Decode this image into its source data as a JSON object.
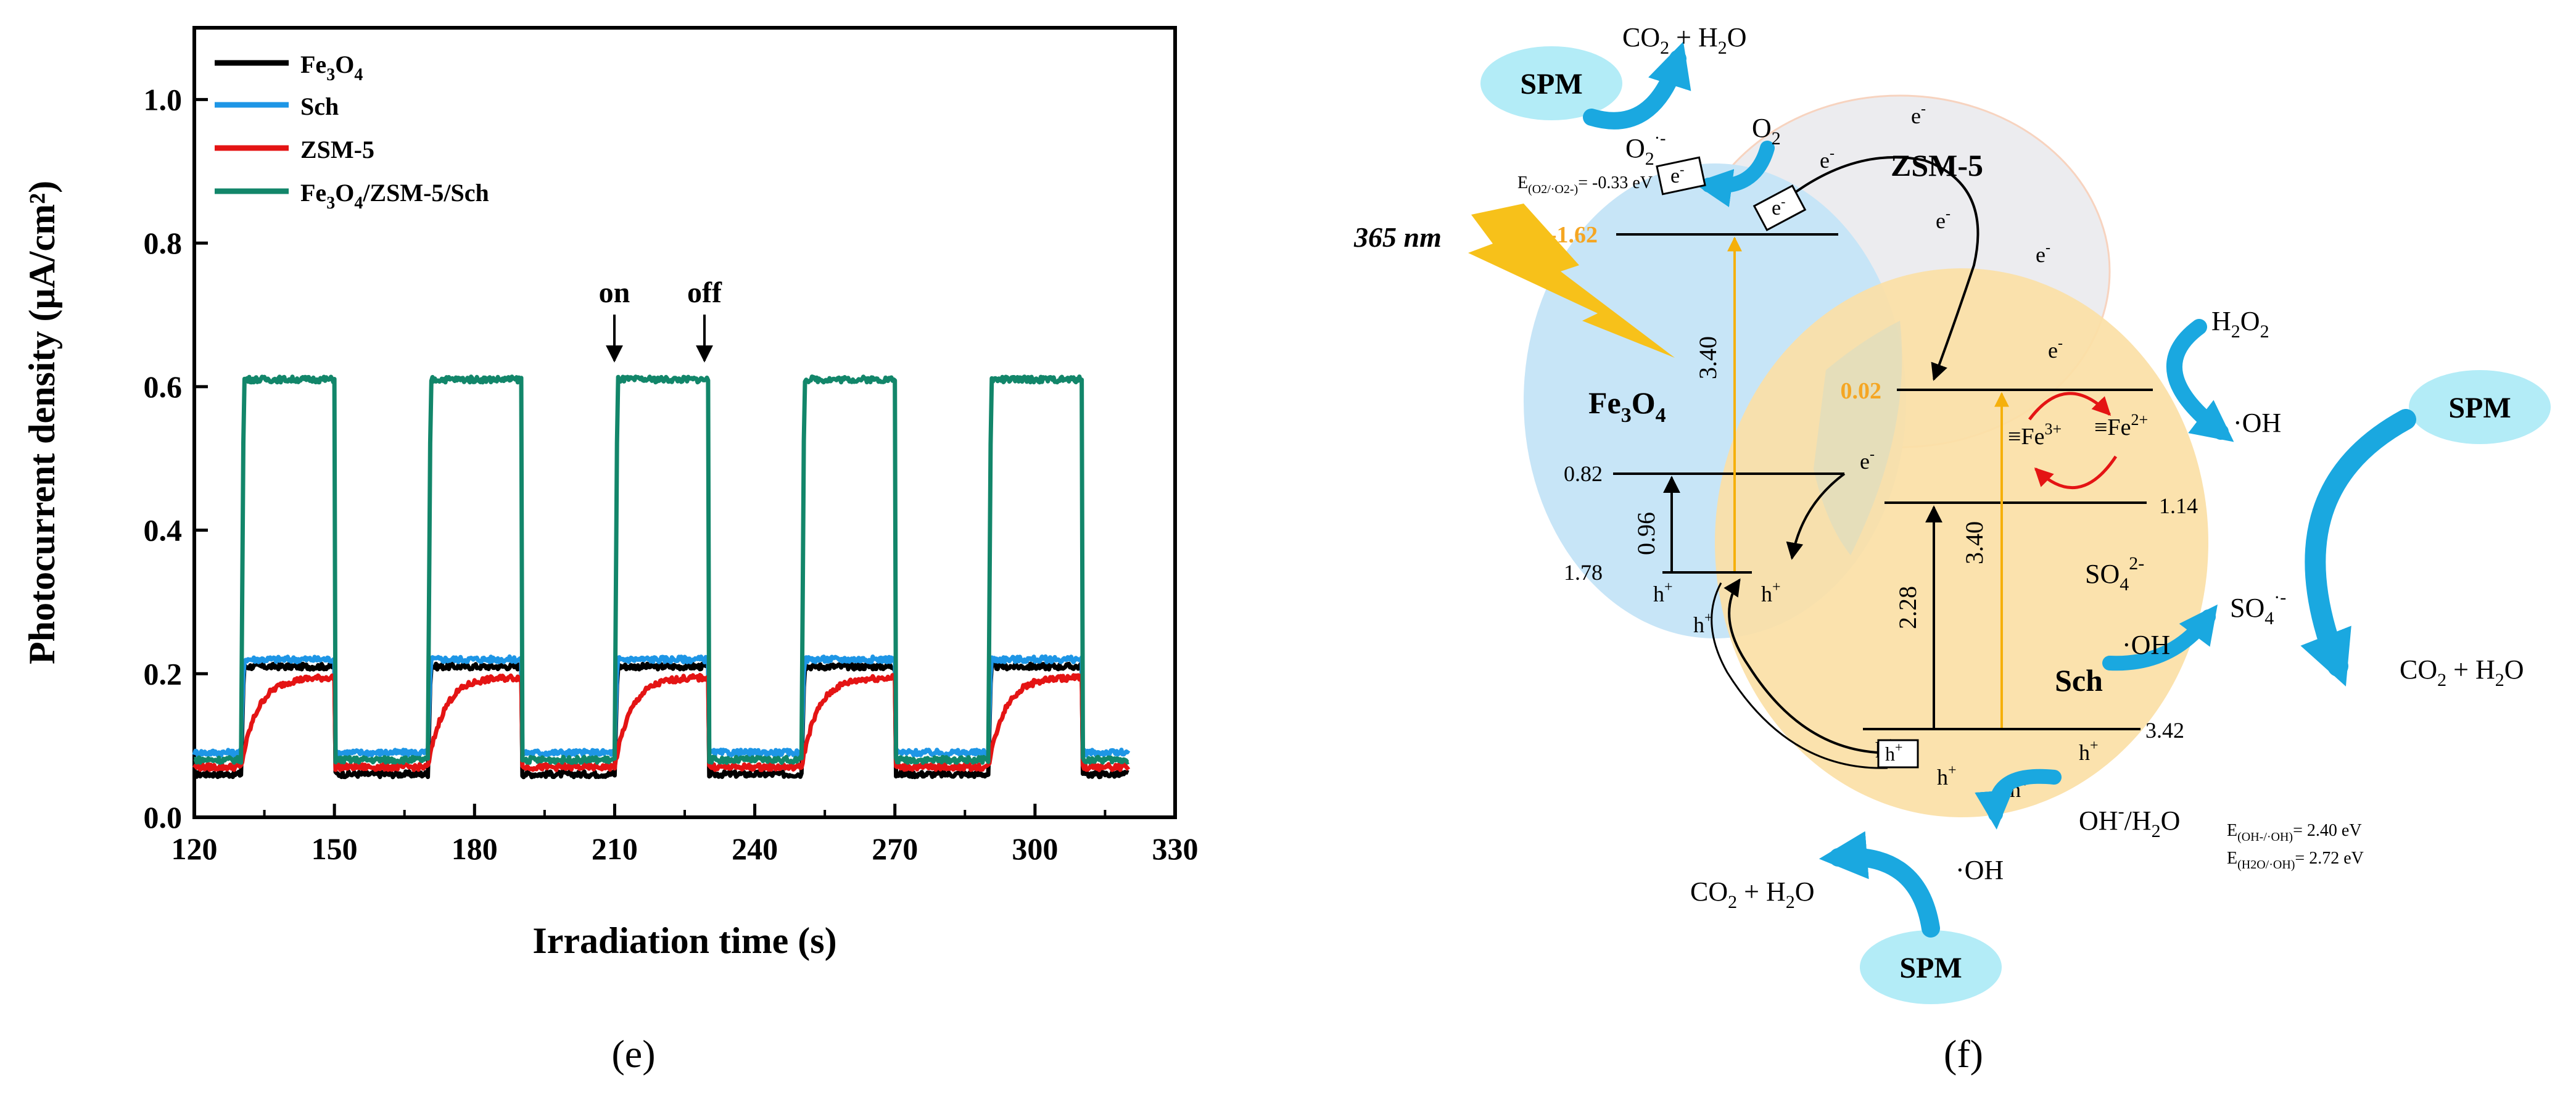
{
  "panel_e": {
    "label": "(e)",
    "chart_data": {
      "type": "line",
      "title": "",
      "xlabel": "Irradiation time (s)",
      "ylabel": "Photocurrent density (μA/cm²)",
      "xlim": [
        120,
        330
      ],
      "ylim": [
        0.0,
        1.1
      ],
      "xticks": [
        120,
        150,
        180,
        210,
        240,
        270,
        300,
        330
      ],
      "yticks": [
        0.0,
        0.2,
        0.4,
        0.6,
        0.8,
        1.0
      ],
      "grid": false,
      "legend_position": "top-left",
      "light_on_intervals": [
        [
          130,
          150
        ],
        [
          170,
          190
        ],
        [
          210,
          230
        ],
        [
          250,
          270
        ],
        [
          290,
          310
        ]
      ],
      "annotations": [
        {
          "text": "on",
          "x": 210
        },
        {
          "text": "off",
          "x": 230
        }
      ],
      "series": [
        {
          "name": "Fe3O4",
          "legend_main": "Fe",
          "legend_sub1": "3",
          "legend_mid": "O",
          "legend_sub2": "4",
          "color": "#000000",
          "dark": 0.06,
          "light": 0.21
        },
        {
          "name": "Sch",
          "color": "#1e96e6",
          "dark": 0.09,
          "light": 0.22
        },
        {
          "name": "ZSM-5",
          "color": "#e41414",
          "dark": 0.07,
          "light": 0.195
        },
        {
          "name": "Fe3O4/ZSM-5/Sch",
          "color": "#12866a",
          "dark": 0.08,
          "light": 0.61
        }
      ],
      "legend_labels": {
        "fe3o4_a": "Fe",
        "fe3o4_b": "3",
        "fe3o4_c": "O",
        "fe3o4_d": "4",
        "sch": "Sch",
        "zsm": "ZSM-5",
        "comp_a": "Fe",
        "comp_b": "3",
        "comp_c": "O",
        "comp_d": "4",
        "comp_e": "/ZSM-5/Sch"
      }
    }
  },
  "panel_f": {
    "label": "(f)",
    "wavelength": "365 nm",
    "fe3o4": {
      "a": "Fe",
      "b": "3",
      "c": "O",
      "d": "4"
    },
    "zsm5": "ZSM-5",
    "sch": "Sch",
    "levels": {
      "fe_cb": "-1.62",
      "sch_cb": "0.02",
      "fe_mid": "0.82",
      "fe_vb": "1.78",
      "sch_mid": "1.14",
      "sch_vb": "3.42"
    },
    "gaps": {
      "fe_gap": "3.40",
      "fe_small": "0.96",
      "sch_gap": "3.40",
      "sch_small": "2.28"
    },
    "electron": "e",
    "electron_sup": "-",
    "hole": "h",
    "hole_sup": "+",
    "spm": "SPM",
    "co2_a": "CO",
    "co2_b": "2",
    "co2_c": " + H",
    "co2_d": "2",
    "co2_e": "O",
    "o2_a": "O",
    "o2_b": "2",
    "o2rad_sup": "·-",
    "e_o2": {
      "a": "E",
      "b": "(O2/·O2-)",
      "c": "= -0.33 eV"
    },
    "h2o2_a": "H",
    "h2o2_b": "2",
    "h2o2_c": "O",
    "h2o2_d": "2",
    "oh": "·OH",
    "fe3": {
      "a": "≡Fe",
      "b": "3+"
    },
    "fe2": {
      "a": "≡Fe",
      "b": "2+"
    },
    "so4": {
      "a": "SO",
      "b": "4",
      "c": "2-"
    },
    "so4rad": {
      "a": "SO",
      "b": "4",
      "c": "·-"
    },
    "ohh2o": {
      "a": "OH",
      "b": "-",
      "c": "/H",
      "d": "2",
      "e": "O"
    },
    "e_oh": {
      "a": "E",
      "b": "(OH-/·OH)",
      "c": "= 2.40 eV"
    },
    "e_h2o": {
      "a": "E",
      "b": "(H2O/·OH)",
      "c": "= 2.72 eV"
    }
  }
}
